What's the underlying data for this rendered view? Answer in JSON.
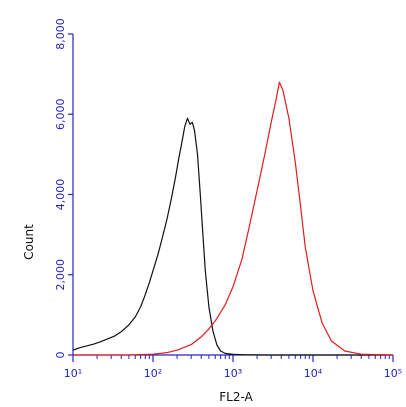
{
  "chart_data": {
    "type": "line",
    "xlabel": "FL2-A",
    "ylabel": "Count",
    "x_scale": "log",
    "xlim": [
      10,
      100000
    ],
    "ylim": [
      0,
      8000
    ],
    "grid": false,
    "y_ticks": [
      {
        "value": 0,
        "label": "0"
      },
      {
        "value": 2000,
        "label": "2,000"
      },
      {
        "value": 4000,
        "label": "4,000"
      },
      {
        "value": 6000,
        "label": "6,000"
      },
      {
        "value": 8000,
        "label": "8,000"
      }
    ],
    "x_ticks": [
      {
        "value": 10,
        "label": "10¹"
      },
      {
        "value": 100,
        "label": "10²"
      },
      {
        "value": 1000,
        "label": "10³"
      },
      {
        "value": 10000,
        "label": "10⁴"
      },
      {
        "value": 100000,
        "label": "10⁵"
      }
    ],
    "series": [
      {
        "color": "#111111",
        "x": [
          10,
          12,
          15,
          18,
          22,
          27,
          33,
          40,
          50,
          60,
          70,
          80,
          90,
          100,
          115,
          130,
          150,
          170,
          190,
          210,
          230,
          250,
          270,
          290,
          310,
          330,
          360,
          390,
          420,
          450,
          500,
          560,
          630,
          700,
          800,
          1000,
          1500,
          3000,
          10000,
          100000
        ],
        "y": [
          120,
          180,
          230,
          270,
          330,
          400,
          470,
          580,
          750,
          950,
          1200,
          1500,
          1800,
          2100,
          2500,
          2900,
          3400,
          3900,
          4400,
          4900,
          5300,
          5700,
          5900,
          5750,
          5800,
          5600,
          5000,
          4000,
          3000,
          2100,
          1200,
          600,
          250,
          100,
          40,
          15,
          5,
          0,
          0,
          0
        ]
      },
      {
        "color": "#e31b1b",
        "x": [
          10,
          50,
          100,
          150,
          200,
          300,
          400,
          500,
          600,
          800,
          1000,
          1300,
          1600,
          2000,
          2500,
          3000,
          3400,
          3800,
          4200,
          5000,
          6000,
          7000,
          8000,
          10000,
          13000,
          17000,
          25000,
          40000,
          100000
        ],
        "y": [
          0,
          0,
          20,
          60,
          120,
          260,
          450,
          650,
          850,
          1250,
          1700,
          2400,
          3200,
          4100,
          5000,
          5800,
          6300,
          6800,
          6600,
          5900,
          4800,
          3700,
          2700,
          1600,
          800,
          350,
          100,
          20,
          0
        ]
      }
    ]
  }
}
